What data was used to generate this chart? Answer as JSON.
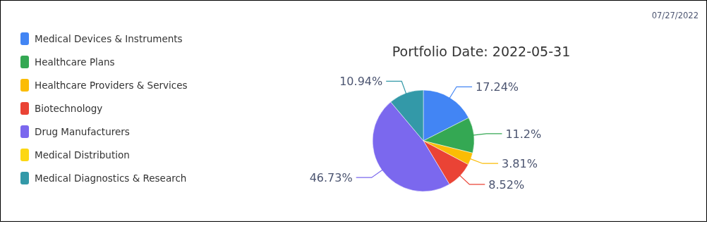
{
  "chart_data": {
    "type": "pie",
    "title": "Portfolio Date: 2022-05-31",
    "categories": [
      "Medical Devices & Instruments",
      "Healthcare Plans",
      "Healthcare Providers & Services",
      "Biotechnology",
      "Drug Manufacturers",
      "Medical Distribution",
      "Medical Diagnostics & Research"
    ],
    "values": [
      17.24,
      11.2,
      3.81,
      8.52,
      46.73,
      null,
      10.94
    ],
    "colors": [
      "#4285f4",
      "#34a853",
      "#fbbc04",
      "#ea4335",
      "#7b68ee",
      "#fcd713",
      "#3399a8"
    ],
    "value_labels": [
      "17.24%",
      "11.2%",
      "3.81%",
      "8.52%",
      "46.73%",
      null,
      "10.94%"
    ],
    "legend": "left",
    "annotations": [
      "07/27/2022"
    ]
  }
}
